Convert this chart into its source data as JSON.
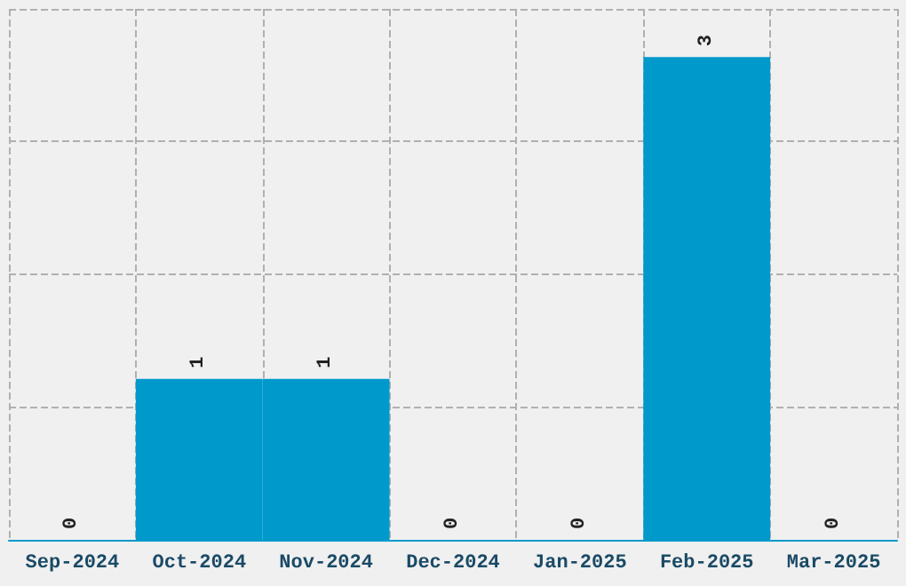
{
  "chart_data": {
    "type": "bar",
    "categories": [
      "Sep-2024",
      "Oct-2024",
      "Nov-2024",
      "Dec-2024",
      "Jan-2025",
      "Feb-2025",
      "Mar-2025"
    ],
    "values": [
      0,
      1,
      1,
      0,
      0,
      3,
      0
    ],
    "color": "#0099cc",
    "ylim": [
      0,
      3.3
    ],
    "yticks": [
      {
        "value": 0,
        "label": null
      },
      {
        "value": 0.825,
        "label": null
      },
      {
        "value": 1.65,
        "label": null
      },
      {
        "value": 2.475,
        "label": null
      },
      {
        "value": 3.3,
        "label": null
      }
    ],
    "tick_labels": "x",
    "grid": true,
    "data_labels": true
  }
}
